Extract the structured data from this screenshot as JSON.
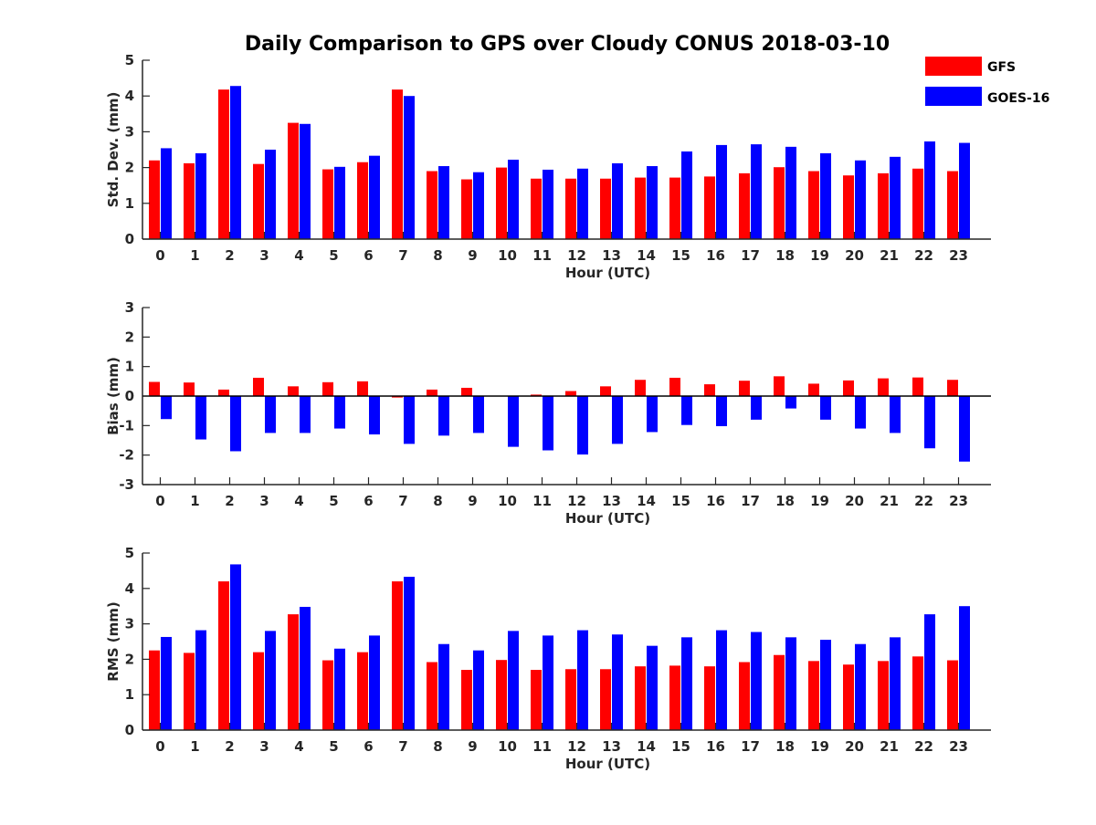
{
  "chart_data": [
    {
      "type": "bar",
      "title": "Daily Comparison to GPS over Cloudy CONUS 2018-03-10",
      "xlabel": "Hour (UTC)",
      "ylabel": "Std. Dev. (mm)",
      "ylim": [
        0,
        5
      ],
      "yticks": [
        0,
        1,
        2,
        3,
        4,
        5
      ],
      "categories": [
        "0",
        "1",
        "2",
        "3",
        "4",
        "5",
        "6",
        "7",
        "8",
        "9",
        "10",
        "11",
        "12",
        "13",
        "14",
        "15",
        "16",
        "17",
        "18",
        "19",
        "20",
        "21",
        "22",
        "23"
      ],
      "legend": {
        "placement": "top-right",
        "entries": [
          "GFS",
          "GOES-16"
        ]
      },
      "series": [
        {
          "name": "GFS",
          "color": "#ff0000",
          "values": [
            2.2,
            2.12,
            4.18,
            2.1,
            3.25,
            1.95,
            2.15,
            4.18,
            1.9,
            1.67,
            2.0,
            1.69,
            1.69,
            1.69,
            1.72,
            1.72,
            1.75,
            1.84,
            2.01,
            1.9,
            1.78,
            1.84,
            1.97,
            1.9
          ]
        },
        {
          "name": "GOES-16",
          "color": "#0000ff",
          "values": [
            2.54,
            2.4,
            4.28,
            2.5,
            3.22,
            2.02,
            2.33,
            4.0,
            2.04,
            1.87,
            2.22,
            1.94,
            1.97,
            2.12,
            2.04,
            2.45,
            2.63,
            2.65,
            2.58,
            2.4,
            2.2,
            2.3,
            2.73,
            2.69
          ]
        }
      ]
    },
    {
      "type": "bar",
      "xlabel": "Hour (UTC)",
      "ylabel": "Bias (mm)",
      "ylim": [
        -3,
        3
      ],
      "yticks": [
        -3,
        -2,
        -1,
        0,
        1,
        2,
        3
      ],
      "categories": [
        "0",
        "1",
        "2",
        "3",
        "4",
        "5",
        "6",
        "7",
        "8",
        "9",
        "10",
        "11",
        "12",
        "13",
        "14",
        "15",
        "16",
        "17",
        "18",
        "19",
        "20",
        "21",
        "22",
        "23"
      ],
      "series": [
        {
          "name": "GFS",
          "color": "#ff0000",
          "values": [
            0.48,
            0.46,
            0.22,
            0.62,
            0.33,
            0.47,
            0.5,
            -0.05,
            0.22,
            0.28,
            0.0,
            0.05,
            0.17,
            0.33,
            0.55,
            0.62,
            0.4,
            0.52,
            0.67,
            0.42,
            0.53,
            0.6,
            0.63,
            0.55
          ]
        },
        {
          "name": "GOES-16",
          "color": "#0000ff",
          "values": [
            -0.78,
            -1.47,
            -1.87,
            -1.25,
            -1.25,
            -1.1,
            -1.3,
            -1.62,
            -1.34,
            -1.25,
            -1.72,
            -1.84,
            -1.98,
            -1.62,
            -1.22,
            -0.98,
            -1.02,
            -0.8,
            -0.42,
            -0.8,
            -1.1,
            -1.25,
            -1.77,
            -2.22
          ]
        }
      ]
    },
    {
      "type": "bar",
      "xlabel": "Hour (UTC)",
      "ylabel": "RMS (mm)",
      "ylim": [
        0,
        5
      ],
      "yticks": [
        0,
        1,
        2,
        3,
        4,
        5
      ],
      "categories": [
        "0",
        "1",
        "2",
        "3",
        "4",
        "5",
        "6",
        "7",
        "8",
        "9",
        "10",
        "11",
        "12",
        "13",
        "14",
        "15",
        "16",
        "17",
        "18",
        "19",
        "20",
        "21",
        "22",
        "23"
      ],
      "series": [
        {
          "name": "GFS",
          "color": "#ff0000",
          "values": [
            2.25,
            2.18,
            4.2,
            2.2,
            3.27,
            1.97,
            2.2,
            4.2,
            1.92,
            1.7,
            1.98,
            1.7,
            1.72,
            1.72,
            1.8,
            1.82,
            1.8,
            1.92,
            2.12,
            1.95,
            1.85,
            1.95,
            2.08,
            1.97
          ]
        },
        {
          "name": "GOES-16",
          "color": "#0000ff",
          "values": [
            2.63,
            2.82,
            4.68,
            2.8,
            3.48,
            2.3,
            2.67,
            4.33,
            2.43,
            2.25,
            2.8,
            2.67,
            2.82,
            2.7,
            2.38,
            2.62,
            2.82,
            2.77,
            2.62,
            2.55,
            2.43,
            2.62,
            3.27,
            3.5
          ]
        }
      ]
    }
  ]
}
